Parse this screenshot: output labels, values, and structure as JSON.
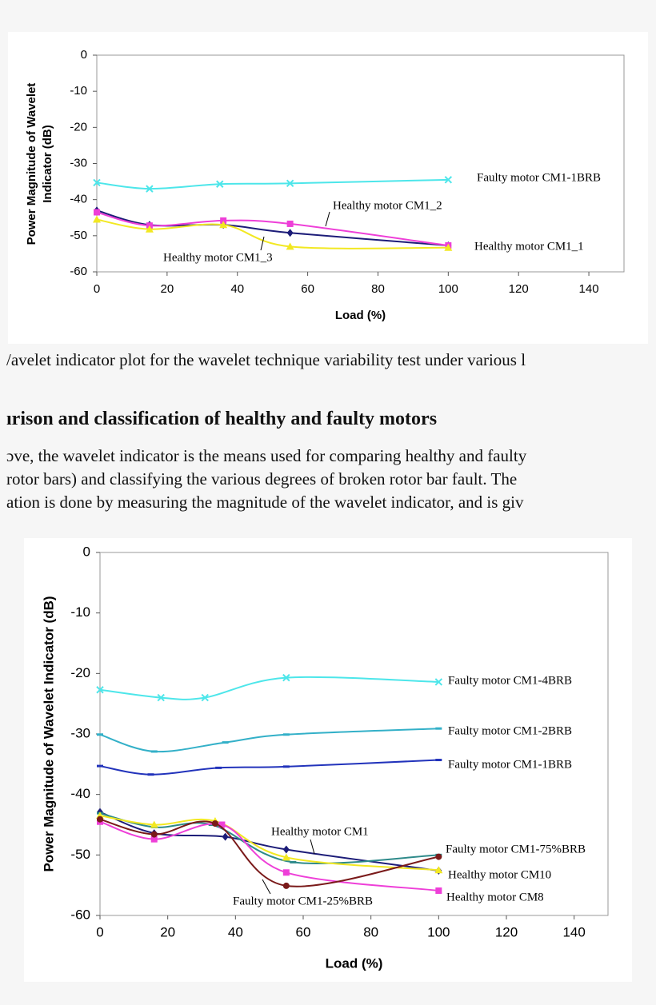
{
  "document": {
    "caption": "/avelet indicator plot for the wavelet technique variability test under various l",
    "heading": "ırison and classification of healthy and faulty motors",
    "paragraph": [
      "ɔve, the wavelet indicator is the means used for comparing healthy and faulty",
      " rotor bars) and classifying the various degrees of broken rotor bar fault. The",
      "ation is done by measuring the magnitude of the wavelet indicator, and is giv"
    ]
  },
  "chart_data": [
    {
      "type": "line",
      "x_label": "Load (%)",
      "y_label": [
        "Power Magnitude of Wavelet",
        "Indicator (dB)"
      ],
      "xlim": [
        0,
        150
      ],
      "xticks": [
        0,
        20,
        40,
        60,
        80,
        100,
        120,
        140
      ],
      "ylim": [
        -60,
        0
      ],
      "yticks": [
        0,
        -10,
        -20,
        -30,
        -40,
        -50,
        -60
      ],
      "series": [
        {
          "name": "Faulty motor CM1-1BRB",
          "color": "#4de6ea",
          "marker": "x",
          "x": [
            0,
            15,
            35,
            55,
            100
          ],
          "values": [
            -35.3,
            -37,
            -35.7,
            -35.5,
            -34.5
          ]
        },
        {
          "name": "Healthy motor CM1_1",
          "color": "#1c1c78",
          "marker": "diamond",
          "x": [
            0,
            15,
            36,
            55,
            100
          ],
          "values": [
            -43,
            -47,
            -47,
            -49.2,
            -52.7
          ]
        },
        {
          "name": "Healthy motor CM1_2",
          "color": "#ee3fd8",
          "marker": "square",
          "x": [
            0,
            15,
            36,
            55,
            100
          ],
          "values": [
            -43.5,
            -47.2,
            -45.8,
            -46.7,
            -52.7
          ]
        },
        {
          "name": "Healthy motor CM1_3",
          "color": "#f2e822",
          "marker": "triangle",
          "x": [
            0,
            15,
            36,
            55,
            100
          ],
          "values": [
            -45.5,
            -48.2,
            -47,
            -53,
            -53.3
          ]
        }
      ]
    },
    {
      "type": "line",
      "x_label": "Load (%)",
      "y_label": [
        "Power Magnitude of Wavelet Indicator (dB)"
      ],
      "xlim": [
        0,
        150
      ],
      "xticks": [
        0,
        20,
        40,
        60,
        80,
        100,
        120,
        140
      ],
      "ylim": [
        -60,
        0
      ],
      "yticks": [
        0,
        -10,
        -20,
        -30,
        -40,
        -50,
        -60
      ],
      "series": [
        {
          "name": "Faulty motor CM1-4BRB",
          "color": "#4de6ea",
          "marker": "x",
          "x": [
            0,
            18,
            31,
            55,
            100
          ],
          "values": [
            -22.7,
            -24,
            -24,
            -20.7,
            -21.4
          ]
        },
        {
          "name": "Faulty motor CM1-2BRB",
          "color": "#33b0c8",
          "marker": "dash",
          "x": [
            0,
            16,
            37,
            55,
            100
          ],
          "values": [
            -30.1,
            -32.9,
            -31.4,
            -30.1,
            -29.1
          ]
        },
        {
          "name": "Faulty motor CM1-1BRB",
          "color": "#2233bb",
          "marker": "dash",
          "x": [
            0,
            15,
            35,
            55,
            100
          ],
          "values": [
            -35.3,
            -36.7,
            -35.6,
            -35.4,
            -34.3
          ]
        },
        {
          "name": "Healthy motor CM1",
          "color": "#1c1c78",
          "marker": "diamond",
          "x": [
            0,
            16,
            37,
            55,
            100
          ],
          "values": [
            -42.9,
            -46.4,
            -47,
            -49.1,
            -52.6
          ]
        },
        {
          "name": "Faulty motor CM1-75%BRB",
          "color": "#2e8a8a",
          "marker": "dash",
          "x": [
            0,
            16,
            33,
            57,
            100
          ],
          "values": [
            -43.1,
            -45.4,
            -45,
            -51.2,
            -50
          ]
        },
        {
          "name": "Healthy motor CM10",
          "color": "#f2e822",
          "marker": "triangle",
          "x": [
            0,
            16,
            34,
            55,
            100
          ],
          "values": [
            -43.5,
            -45,
            -44.4,
            -50.4,
            -52.5
          ]
        },
        {
          "name": "Healthy motor CM8",
          "color": "#ee3fd8",
          "marker": "square",
          "x": [
            0,
            16,
            36,
            55,
            100
          ],
          "values": [
            -44.5,
            -47.4,
            -45,
            -52.9,
            -55.9
          ]
        },
        {
          "name": "Faulty motor CM1-25%BRB",
          "color": "#7a1a1a",
          "marker": "circle",
          "x": [
            0,
            16,
            34,
            55,
            100
          ],
          "values": [
            -44.1,
            -46.6,
            -44.8,
            -55.1,
            -50.3
          ]
        }
      ]
    }
  ]
}
